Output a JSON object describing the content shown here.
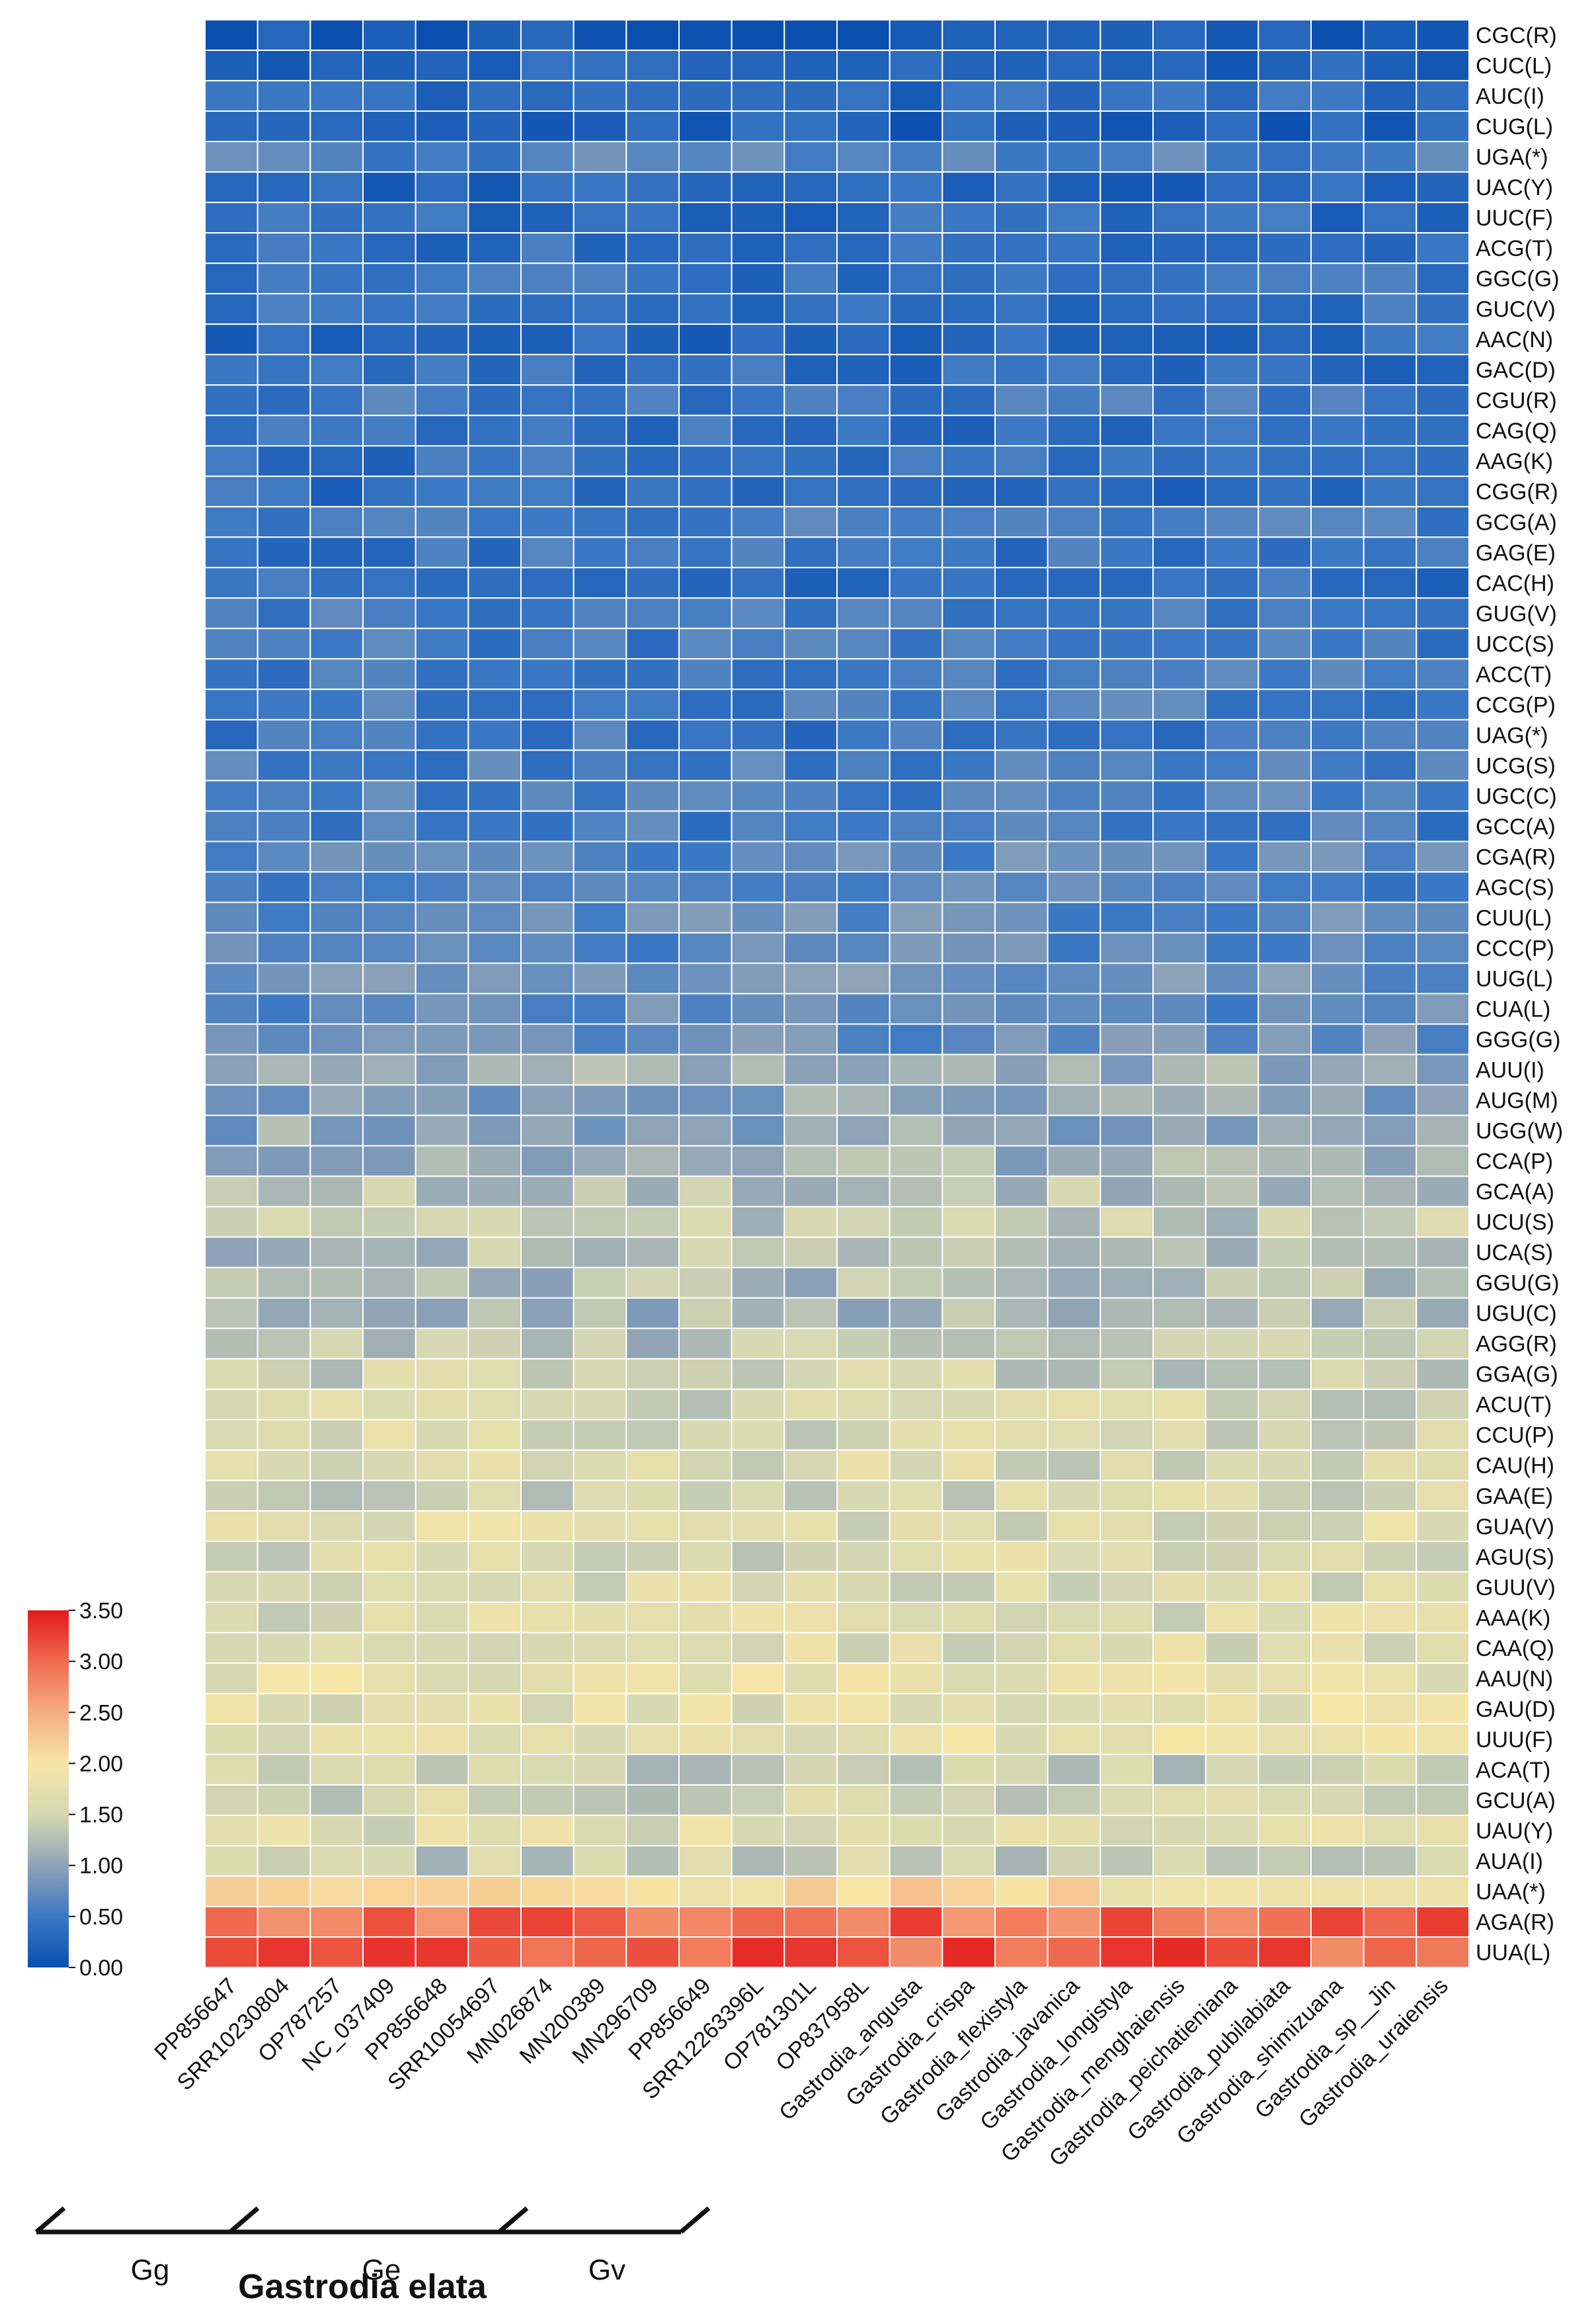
{
  "chart_data": {
    "type": "heatmap",
    "title": "",
    "xlabel": "Gastrodia elata",
    "columns": [
      "PP856647",
      "SRR10230804",
      "OP787257",
      "NC_037409",
      "PP856648",
      "SRR10054697",
      "MN026874",
      "MN200389",
      "MN296709",
      "PP856649",
      "SRR12263396L",
      "OP781301L",
      "OP837958L",
      "Gastrodia_angusta",
      "Gastrodia_crispa",
      "Gastrodia_flexistyla",
      "Gastrodia_javanica",
      "Gastrodia_longistyla",
      "Gastrodia_menghaiensis",
      "Gastrodia_peichatieniana",
      "Gastrodia_pubilabiata",
      "Gastrodia_shimizuana",
      "Gastrodia_sp__Jin",
      "Gastrodia_uraiensis"
    ],
    "rows": [
      "CGC(R)",
      "CUC(L)",
      "AUC(I)",
      "CUG(L)",
      "UGA(*)",
      "UAC(Y)",
      "UUC(F)",
      "ACG(T)",
      "GGC(G)",
      "GUC(V)",
      "AAC(N)",
      "GAC(D)",
      "CGU(R)",
      "CAG(Q)",
      "AAG(K)",
      "CGG(R)",
      "GCG(A)",
      "GAG(E)",
      "CAC(H)",
      "GUG(V)",
      "UCC(S)",
      "ACC(T)",
      "CCG(P)",
      "UAG(*)",
      "UCG(S)",
      "UGC(C)",
      "GCC(A)",
      "CGA(R)",
      "AGC(S)",
      "CUU(L)",
      "CCC(P)",
      "UUG(L)",
      "CUA(L)",
      "GGG(G)",
      "AUU(I)",
      "AUG(M)",
      "UGG(W)",
      "CCA(P)",
      "GCA(A)",
      "UCU(S)",
      "UCA(S)",
      "GGU(G)",
      "UGU(C)",
      "AGG(R)",
      "GGA(G)",
      "ACU(T)",
      "CCU(P)",
      "CAU(H)",
      "GAA(E)",
      "GUA(V)",
      "AGU(S)",
      "GUU(V)",
      "AAA(K)",
      "CAA(Q)",
      "AAU(N)",
      "GAU(D)",
      "UUU(F)",
      "ACA(T)",
      "GCU(A)",
      "UAU(Y)",
      "AUA(I)",
      "UAA(*)",
      "AGA(R)",
      "UUA(L)"
    ],
    "row_means": [
      0.15,
      0.28,
      0.35,
      0.22,
      0.62,
      0.28,
      0.35,
      0.38,
      0.42,
      0.4,
      0.33,
      0.38,
      0.48,
      0.4,
      0.42,
      0.38,
      0.55,
      0.45,
      0.38,
      0.52,
      0.52,
      0.52,
      0.55,
      0.48,
      0.55,
      0.58,
      0.55,
      0.7,
      0.62,
      0.72,
      0.7,
      0.78,
      0.72,
      0.75,
      1.05,
      1.0,
      1.0,
      1.15,
      1.3,
      1.35,
      1.25,
      1.2,
      1.15,
      1.28,
      1.45,
      1.5,
      1.55,
      1.58,
      1.5,
      1.62,
      1.55,
      1.55,
      1.62,
      1.6,
      1.72,
      1.72,
      1.72,
      1.4,
      1.48,
      1.65,
      1.4,
      2.05,
      2.95,
      3.1
    ],
    "colorbar": {
      "min": 0.0,
      "max": 3.5,
      "ticks": [
        "0.00",
        "0.50",
        "1.00",
        "1.50",
        "2.00",
        "2.50",
        "3.00",
        "3.50"
      ],
      "colors": [
        "#0a4fb0",
        "#3b78c4",
        "#8fa3b6",
        "#d6d8b2",
        "#f6e6a6",
        "#f5ad82",
        "#ef6a50",
        "#e41a1c"
      ]
    },
    "groups": [
      {
        "label": "Gg"
      },
      {
        "label": "Ge"
      },
      {
        "label": "Gv"
      }
    ],
    "species_label": "Gastrodia elata"
  }
}
